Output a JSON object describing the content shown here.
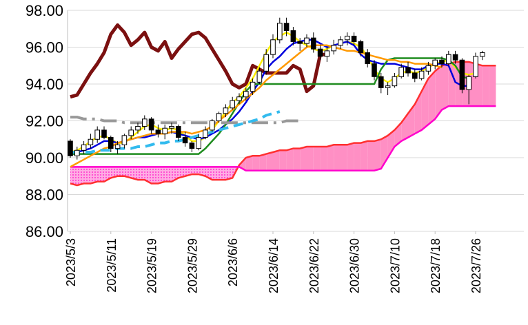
{
  "chart_data": {
    "type": "line",
    "title": "",
    "xlabel": "",
    "ylabel": "",
    "ylim": [
      86,
      98
    ],
    "yticks": [
      "98.00",
      "96.00",
      "94.00",
      "92.00",
      "90.00",
      "88.00",
      "86.00"
    ],
    "ytick_values": [
      98,
      96,
      94,
      92,
      90,
      88,
      86
    ],
    "xticks": [
      "2023/5/3",
      "2023/5/11",
      "2023/5/19",
      "2023/5/29",
      "2023/6/6",
      "2023/6/14",
      "2023/6/22",
      "2023/6/30",
      "2023/7/10",
      "2023/7/18",
      "2023/7/26"
    ],
    "xtick_index": [
      0,
      6,
      12,
      18,
      24,
      30,
      36,
      42,
      48,
      54,
      60
    ],
    "grid": true,
    "legend": "none",
    "candles": [
      [
        90.9,
        91.0,
        90.0,
        90.1
      ],
      [
        90.1,
        90.6,
        89.9,
        90.4
      ],
      [
        90.4,
        90.9,
        90.2,
        90.7
      ],
      [
        90.7,
        91.3,
        90.5,
        91.0
      ],
      [
        91.0,
        91.7,
        90.8,
        91.5
      ],
      [
        91.5,
        91.7,
        91.0,
        91.1
      ],
      [
        91.1,
        91.2,
        90.3,
        90.5
      ],
      [
        90.5,
        90.9,
        90.2,
        90.7
      ],
      [
        90.7,
        91.3,
        90.5,
        91.2
      ],
      [
        91.2,
        91.7,
        91.0,
        91.5
      ],
      [
        91.5,
        91.9,
        91.3,
        91.7
      ],
      [
        91.7,
        92.3,
        91.5,
        92.1
      ],
      [
        92.1,
        92.2,
        91.3,
        91.5
      ],
      [
        91.5,
        91.8,
        91.1,
        91.3
      ],
      [
        91.3,
        91.8,
        91.0,
        91.6
      ],
      [
        91.6,
        91.9,
        91.3,
        91.7
      ],
      [
        91.7,
        91.8,
        90.9,
        91.1
      ],
      [
        91.1,
        91.4,
        90.6,
        90.8
      ],
      [
        90.8,
        90.9,
        90.3,
        90.5
      ],
      [
        90.5,
        91.3,
        90.4,
        91.1
      ],
      [
        91.1,
        91.7,
        91.0,
        91.5
      ],
      [
        91.5,
        92.1,
        91.4,
        92.0
      ],
      [
        92.0,
        92.5,
        91.9,
        92.4
      ],
      [
        92.4,
        92.9,
        92.2,
        92.7
      ],
      [
        92.7,
        93.3,
        92.6,
        93.1
      ],
      [
        93.1,
        93.5,
        92.9,
        93.3
      ],
      [
        93.3,
        93.8,
        93.1,
        93.6
      ],
      [
        93.6,
        94.3,
        93.4,
        94.1
      ],
      [
        94.1,
        94.9,
        94.0,
        94.7
      ],
      [
        94.7,
        95.9,
        94.5,
        95.6
      ],
      [
        95.6,
        96.7,
        95.4,
        96.4
      ],
      [
        96.4,
        97.6,
        96.2,
        97.3
      ],
      [
        97.3,
        97.6,
        96.6,
        96.9
      ],
      [
        96.9,
        97.1,
        96.1,
        96.3
      ],
      [
        96.3,
        96.5,
        95.8,
        96.2
      ],
      [
        96.2,
        96.7,
        96.0,
        96.5
      ],
      [
        96.5,
        96.8,
        95.7,
        95.9
      ],
      [
        95.9,
        96.1,
        95.3,
        95.5
      ],
      [
        95.5,
        96.0,
        95.2,
        95.8
      ],
      [
        95.8,
        96.4,
        95.6,
        96.1
      ],
      [
        96.1,
        96.6,
        95.9,
        96.4
      ],
      [
        96.4,
        96.8,
        96.1,
        96.6
      ],
      [
        96.6,
        96.8,
        96.1,
        96.3
      ],
      [
        96.3,
        96.4,
        95.5,
        95.7
      ],
      [
        95.7,
        95.9,
        94.9,
        95.1
      ],
      [
        95.1,
        95.3,
        94.2,
        94.4
      ],
      [
        94.4,
        94.6,
        93.5,
        93.8
      ],
      [
        93.8,
        94.1,
        93.4,
        93.9
      ],
      [
        93.9,
        94.6,
        93.8,
        94.4
      ],
      [
        94.4,
        95.1,
        94.3,
        94.9
      ],
      [
        94.9,
        95.2,
        94.4,
        94.6
      ],
      [
        94.6,
        94.8,
        94.1,
        94.3
      ],
      [
        94.3,
        94.9,
        94.2,
        94.7
      ],
      [
        94.7,
        95.2,
        94.5,
        95.0
      ],
      [
        95.0,
        95.4,
        94.8,
        95.3
      ],
      [
        95.3,
        95.5,
        94.9,
        95.1
      ],
      [
        95.1,
        95.8,
        95.0,
        95.6
      ],
      [
        95.6,
        95.8,
        95.1,
        95.3
      ],
      [
        95.3,
        95.4,
        93.5,
        93.7
      ],
      [
        93.7,
        94.5,
        92.9,
        94.4
      ],
      [
        94.4,
        95.7,
        94.3,
        95.5
      ],
      [
        95.5,
        95.8,
        95.3,
        95.7
      ]
    ],
    "series": [
      {
        "color": "#7b1010",
        "dash": "",
        "width": 5,
        "values": [
          93.3,
          93.4,
          94.0,
          94.6,
          95.1,
          95.7,
          96.7,
          97.2,
          96.8,
          96.1,
          96.4,
          96.8,
          96.0,
          95.8,
          96.3,
          95.4,
          95.9,
          96.3,
          96.7,
          96.8,
          96.5,
          95.9,
          95.3,
          94.7,
          94.0,
          93.8,
          94.0,
          95.0,
          94.8,
          94.6,
          94.6,
          94.6,
          94.6,
          95.0,
          94.8,
          93.6,
          93.9,
          95.6,
          95.6
        ]
      },
      {
        "color": "#ffee00",
        "dash": "",
        "width": 2.5,
        "values": [
          90.3,
          90.4,
          90.6,
          90.9,
          91.1,
          91.2,
          91.0,
          90.8,
          90.8,
          91.1,
          91.4,
          91.7,
          91.8,
          91.6,
          91.5,
          91.6,
          91.5,
          91.2,
          90.9,
          90.9,
          91.1,
          91.5,
          92.0,
          92.5,
          93.0,
          93.3,
          93.8,
          94.3,
          95.0,
          95.7,
          96.3,
          96.6,
          96.8,
          96.6,
          96.3,
          96.1,
          95.9,
          95.8,
          95.9,
          96.1,
          96.2,
          96.3,
          96.2,
          96.0,
          95.5,
          94.8,
          94.3,
          94.1,
          94.3,
          94.6,
          94.7,
          94.6,
          94.7,
          94.9,
          95.1,
          95.2,
          95.3,
          94.9,
          94.6,
          94.5,
          94.6
        ]
      },
      {
        "color": "#0000dd",
        "dash": "",
        "width": 2.5,
        "values": [
          90.3,
          90.3,
          90.4,
          90.5,
          90.7,
          90.9,
          90.9,
          90.8,
          90.9,
          91.0,
          91.1,
          91.1,
          91.2,
          91.3,
          91.3,
          91.4,
          91.3,
          91.2,
          91.1,
          91.0,
          91.1,
          91.3,
          91.5,
          91.8,
          92.1,
          92.5,
          93.0,
          93.6,
          94.1,
          94.8,
          95.2,
          95.5,
          95.9,
          96.2,
          96.3,
          96.4,
          96.4,
          96.2,
          96.0,
          96.1,
          96.2,
          96.3,
          96.1,
          95.6,
          95.3,
          95.2,
          95.1,
          95.1,
          95.1,
          95.0,
          94.9,
          94.8,
          94.8,
          95.0,
          95.1,
          95.1,
          95.0,
          94.1,
          93.9,
          93.9
        ]
      },
      {
        "color": "#1f8c1f",
        "dash": "",
        "width": 2.5,
        "values": [
          90.2,
          90.2,
          90.2,
          90.2,
          90.2,
          90.2,
          90.2,
          90.2,
          90.2,
          90.2,
          90.2,
          90.2,
          90.2,
          90.2,
          90.2,
          90.2,
          90.2,
          90.2,
          90.2,
          90.2,
          90.5,
          90.9,
          91.3,
          91.8,
          92.4,
          93.0,
          93.6,
          94.0,
          94.0,
          94.0,
          94.0,
          94.0,
          94.0,
          94.0,
          94.0,
          94.0,
          94.0,
          94.0,
          94.0,
          94.0,
          94.0,
          94.0,
          94.0,
          94.0,
          94.0,
          94.0,
          94.8,
          95.3,
          95.4,
          95.4,
          95.4,
          95.4,
          95.4,
          95.4,
          95.4,
          95.4,
          95.3,
          95.0,
          94.4,
          94.3
        ]
      },
      {
        "color": "#ff9900",
        "dash": "",
        "width": 2.5,
        "values": [
          89.5,
          89.7,
          89.9,
          90.1,
          90.3,
          90.5,
          90.6,
          90.8,
          90.9,
          91.0,
          91.1,
          91.2,
          91.3,
          91.3,
          91.3,
          91.4,
          91.4,
          91.4,
          91.3,
          91.4,
          91.5,
          91.7,
          92.0,
          92.3,
          92.6,
          92.9,
          93.2,
          93.5,
          93.8,
          94.2,
          94.5,
          94.8,
          95.1,
          95.4,
          95.7,
          96.0,
          96.1,
          96.1,
          96.1,
          96.0,
          95.9,
          95.8,
          95.8,
          95.7,
          95.6,
          95.5,
          95.4,
          95.3,
          95.3,
          95.2,
          95.2,
          95.1,
          95.1,
          95.1,
          95.0,
          94.9
        ]
      },
      {
        "color": "#999999",
        "dash": "24 8 4 8",
        "width": 4,
        "values": [
          92.2,
          92.2,
          92.1,
          92.1,
          92.1,
          92.0,
          92.0,
          92.0,
          91.9,
          91.9,
          91.9,
          91.9,
          91.9,
          91.9,
          91.9,
          91.9,
          91.9,
          91.9,
          91.9,
          91.9,
          91.9,
          91.9,
          91.9,
          91.9,
          91.9,
          91.9,
          91.9,
          91.9,
          91.9,
          91.9,
          91.9,
          91.9,
          92.0,
          92.0,
          92.0
        ]
      },
      {
        "color": "#33bbee",
        "dash": "14 8",
        "width": 4,
        "values": [
          90.3,
          90.3,
          90.3,
          90.3,
          90.4,
          90.4,
          90.4,
          90.5,
          90.5,
          90.5,
          90.6,
          90.6,
          90.7,
          90.8,
          90.8,
          90.9,
          90.9,
          91.0,
          91.1,
          91.2,
          91.3,
          91.4,
          91.5,
          91.6,
          91.7,
          91.8,
          91.9,
          92.0,
          92.1,
          92.3,
          92.4,
          92.5
        ]
      }
    ],
    "cloud": {
      "span_a_color": "#ff3030",
      "span_b_color": "#ff00cc",
      "fill_color": "#ff8fc4",
      "span_a": [
        88.6,
        88.5,
        88.6,
        88.6,
        88.7,
        88.7,
        88.9,
        89.0,
        89.0,
        88.9,
        88.8,
        88.8,
        88.6,
        88.6,
        88.7,
        88.7,
        88.9,
        89.0,
        89.1,
        89.1,
        89.0,
        88.8,
        88.8,
        88.8,
        88.9,
        89.6,
        90.0,
        90.1,
        90.1,
        90.2,
        90.3,
        90.4,
        90.4,
        90.5,
        90.5,
        90.6,
        90.6,
        90.6,
        90.6,
        90.7,
        90.7,
        90.7,
        90.8,
        90.8,
        90.9,
        90.9,
        91.0,
        91.2,
        91.5,
        91.9,
        92.4,
        92.9,
        93.6,
        94.3,
        94.7,
        95.0,
        95.1,
        95.2,
        95.2,
        95.2,
        95.1,
        95.0,
        95.0,
        95.0
      ],
      "span_b": [
        89.5,
        89.5,
        89.5,
        89.5,
        89.5,
        89.5,
        89.5,
        89.5,
        89.5,
        89.5,
        89.5,
        89.5,
        89.5,
        89.5,
        89.5,
        89.5,
        89.5,
        89.5,
        89.5,
        89.5,
        89.5,
        89.5,
        89.5,
        89.5,
        89.5,
        89.5,
        89.3,
        89.3,
        89.3,
        89.3,
        89.3,
        89.3,
        89.3,
        89.3,
        89.3,
        89.3,
        89.3,
        89.3,
        89.3,
        89.3,
        89.3,
        89.3,
        89.3,
        89.3,
        89.3,
        89.3,
        89.4,
        90.0,
        90.6,
        90.9,
        91.1,
        91.3,
        91.5,
        91.8,
        92.1,
        92.6,
        92.8,
        92.8,
        92.8,
        92.8,
        92.8,
        92.8,
        92.8,
        92.8
      ]
    }
  }
}
